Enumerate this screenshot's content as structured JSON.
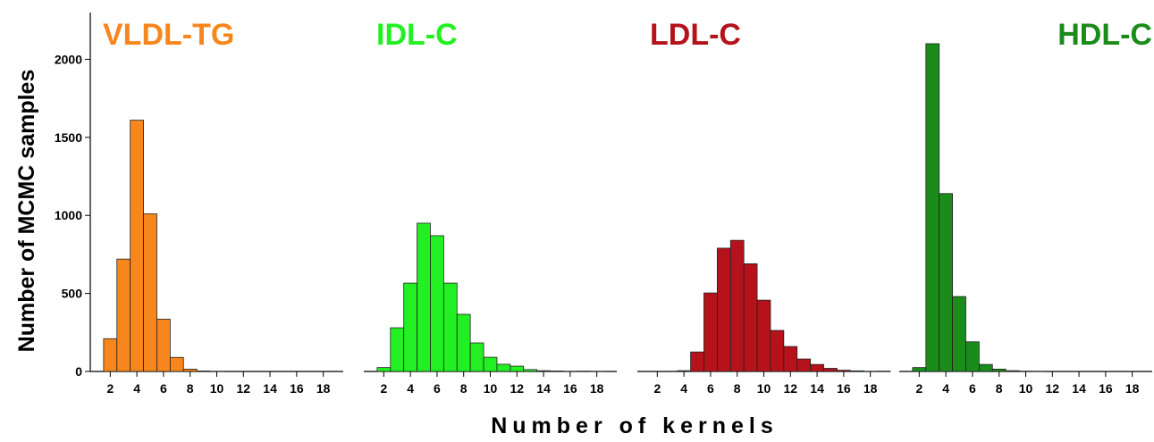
{
  "y_label": "Number of MCMC samples",
  "x_label": "Number of kernels",
  "chart_data": [
    {
      "type": "histogram",
      "title": "VLDL-TG",
      "color": "#f7861c",
      "bins": [
        1.5,
        2.5,
        3.5,
        4.5,
        5.5,
        6.5,
        7.5,
        8.5,
        9.5,
        10.5,
        11.5,
        12.5,
        13.5,
        14.5,
        15.5,
        16.5,
        17.5,
        18.5,
        19.5
      ],
      "values": [
        210,
        720,
        1610,
        1010,
        335,
        90,
        15,
        3,
        1,
        0,
        0,
        0,
        0,
        0,
        0,
        0,
        0,
        0
      ],
      "xlim": [
        0.5,
        19.5
      ],
      "xticks": [
        2,
        4,
        6,
        8,
        10,
        12,
        14,
        16,
        18
      ],
      "ylim": [
        0,
        2300
      ],
      "yticks": [
        0,
        500,
        1000,
        1500,
        2000
      ]
    },
    {
      "type": "histogram",
      "title": "IDL-C",
      "color": "#22f022",
      "bins": [
        1.5,
        2.5,
        3.5,
        4.5,
        5.5,
        6.5,
        7.5,
        8.5,
        9.5,
        10.5,
        11.5,
        12.5,
        13.5,
        14.5,
        15.5,
        16.5,
        17.5,
        18.5,
        19.5
      ],
      "values": [
        25,
        280,
        566,
        950,
        870,
        566,
        366,
        183,
        91,
        46,
        34,
        12,
        5,
        3,
        1,
        2,
        1,
        0
      ],
      "xlim": [
        0.5,
        19.5
      ],
      "xticks": [
        2,
        4,
        6,
        8,
        10,
        12,
        14,
        16,
        18
      ],
      "ylim": [
        0,
        2300
      ]
    },
    {
      "type": "histogram",
      "title": "LDL-C",
      "color": "#b5121b",
      "bins": [
        1.5,
        2.5,
        3.5,
        4.5,
        5.5,
        6.5,
        7.5,
        8.5,
        9.5,
        10.5,
        11.5,
        12.5,
        13.5,
        14.5,
        15.5,
        16.5,
        17.5,
        18.5,
        19.5
      ],
      "values": [
        0,
        0,
        5,
        125,
        503,
        790,
        840,
        690,
        457,
        263,
        160,
        80,
        45,
        20,
        8,
        4,
        1,
        2
      ],
      "xlim": [
        0.5,
        19.5
      ],
      "xticks": [
        2,
        4,
        6,
        8,
        10,
        12,
        14,
        16,
        18
      ],
      "ylim": [
        0,
        2300
      ]
    },
    {
      "type": "histogram",
      "title": "HDL-C",
      "color": "#1a8c1a",
      "bins": [
        1.5,
        2.5,
        3.5,
        4.5,
        5.5,
        6.5,
        7.5,
        8.5,
        9.5,
        10.5,
        11.5,
        12.5,
        13.5,
        14.5,
        15.5,
        16.5,
        17.5,
        18.5,
        19.5
      ],
      "values": [
        25,
        2100,
        1140,
        480,
        190,
        45,
        15,
        5,
        2,
        1,
        0,
        0,
        0,
        0,
        0,
        0,
        0,
        0
      ],
      "xlim": [
        0.5,
        19.5
      ],
      "xticks": [
        2,
        4,
        6,
        8,
        10,
        12,
        14,
        16,
        18
      ],
      "ylim": [
        0,
        2300
      ]
    }
  ]
}
